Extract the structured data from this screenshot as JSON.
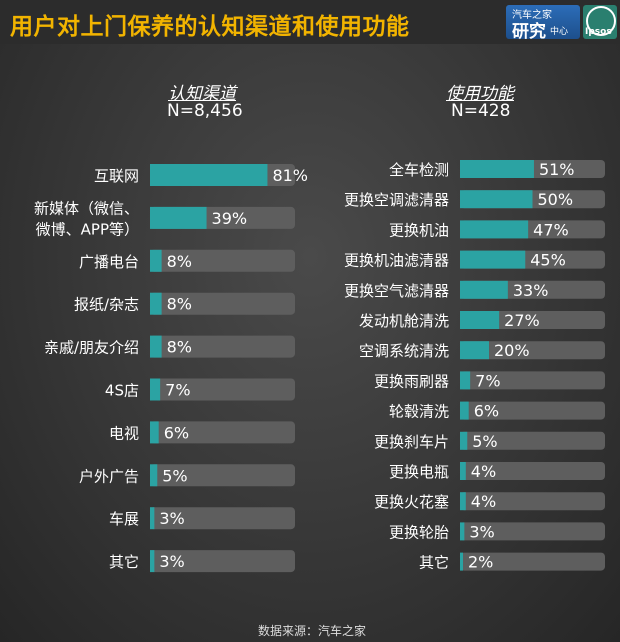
{
  "header": {
    "title": "用户对上门保养的认知渠道和使用功能",
    "logo_autohome_top": "汽车之家",
    "logo_autohome_main": "研究",
    "logo_autohome_sub": "中心",
    "logo_ipsos": "Ipsos"
  },
  "colors": {
    "title": "#f2b400",
    "bar": "#2ba3a3",
    "track": "#5e5e5e",
    "text": "#ffffff"
  },
  "chart_data": [
    {
      "type": "bar",
      "orientation": "horizontal",
      "title": "认知渠道",
      "subtitle": "N=8,456",
      "ylim": [
        0,
        100
      ],
      "unit": "%",
      "categories": [
        [
          "互联网"
        ],
        [
          "新媒体（微信、",
          "微博、APP等）"
        ],
        [
          "广播电台"
        ],
        [
          "报纸/杂志"
        ],
        [
          "亲戚/朋友介绍"
        ],
        [
          "4S店"
        ],
        [
          "电视"
        ],
        [
          "户外广告"
        ],
        [
          "车展"
        ],
        [
          "其它"
        ]
      ],
      "values": [
        81,
        39,
        8,
        8,
        8,
        7,
        6,
        5,
        3,
        3
      ],
      "value_labels": [
        "81%",
        "39%",
        "8%",
        "8%",
        "8%",
        "7%",
        "6%",
        "5%",
        "3%",
        "3%"
      ]
    },
    {
      "type": "bar",
      "orientation": "horizontal",
      "title": "使用功能",
      "subtitle": "N=428",
      "ylim": [
        0,
        100
      ],
      "unit": "%",
      "categories": [
        [
          "全车检测"
        ],
        [
          "更换空调滤清器"
        ],
        [
          "更换机油"
        ],
        [
          "更换机油滤清器"
        ],
        [
          "更换空气滤清器"
        ],
        [
          "发动机舱清洗"
        ],
        [
          "空调系统清洗"
        ],
        [
          "更换雨刷器"
        ],
        [
          "轮毂清洗"
        ],
        [
          "更换刹车片"
        ],
        [
          "更换电瓶"
        ],
        [
          "更换火花塞"
        ],
        [
          "更换轮胎"
        ],
        [
          "其它"
        ]
      ],
      "values": [
        51,
        50,
        47,
        45,
        33,
        27,
        20,
        7,
        6,
        5,
        4,
        4,
        3,
        2
      ],
      "value_labels": [
        "51%",
        "50%",
        "47%",
        "45%",
        "33%",
        "27%",
        "20%",
        "7%",
        "6%",
        "5%",
        "4%",
        "4%",
        "3%",
        "2%"
      ]
    }
  ],
  "footer": {
    "source": "数据来源：汽车之家"
  }
}
